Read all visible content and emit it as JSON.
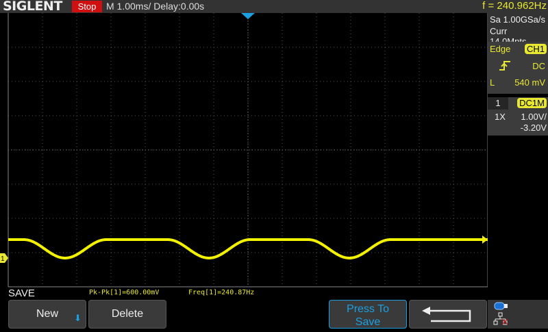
{
  "header": {
    "logo": "SIGLENT",
    "run_state": "Stop",
    "timebase": "M 1.00ms/ Delay:0.00s",
    "frequency": "f = 240.962Hz"
  },
  "acquisition": {
    "sample_rate": "Sa 1.00GSa/s",
    "memory": "Curr 14.0Mpts"
  },
  "trigger": {
    "type": "Edge",
    "source": "CH1",
    "slope_icon": "rising-edge-icon",
    "coupling": "DC",
    "level_label": "L",
    "level": "540 mV"
  },
  "channel": {
    "number": "1",
    "coupling": "DC1M",
    "probe": "1X",
    "scale": "1.00V/",
    "offset": "-3.20V"
  },
  "measurements": {
    "pkpk": "Pk-Pk[1]=600.00mV",
    "freq": "Freq[1]=240.87Hz"
  },
  "menu": {
    "title": "SAVE",
    "new_label": "New",
    "delete_label": "Delete",
    "press_to_save_label": "Press To Save",
    "back_icon": "return-arrow-icon"
  },
  "marker": {
    "channel": "1"
  },
  "colors": {
    "trace": "#f2f200",
    "accent": "#1aa0e0",
    "stop": "#d01010"
  }
}
